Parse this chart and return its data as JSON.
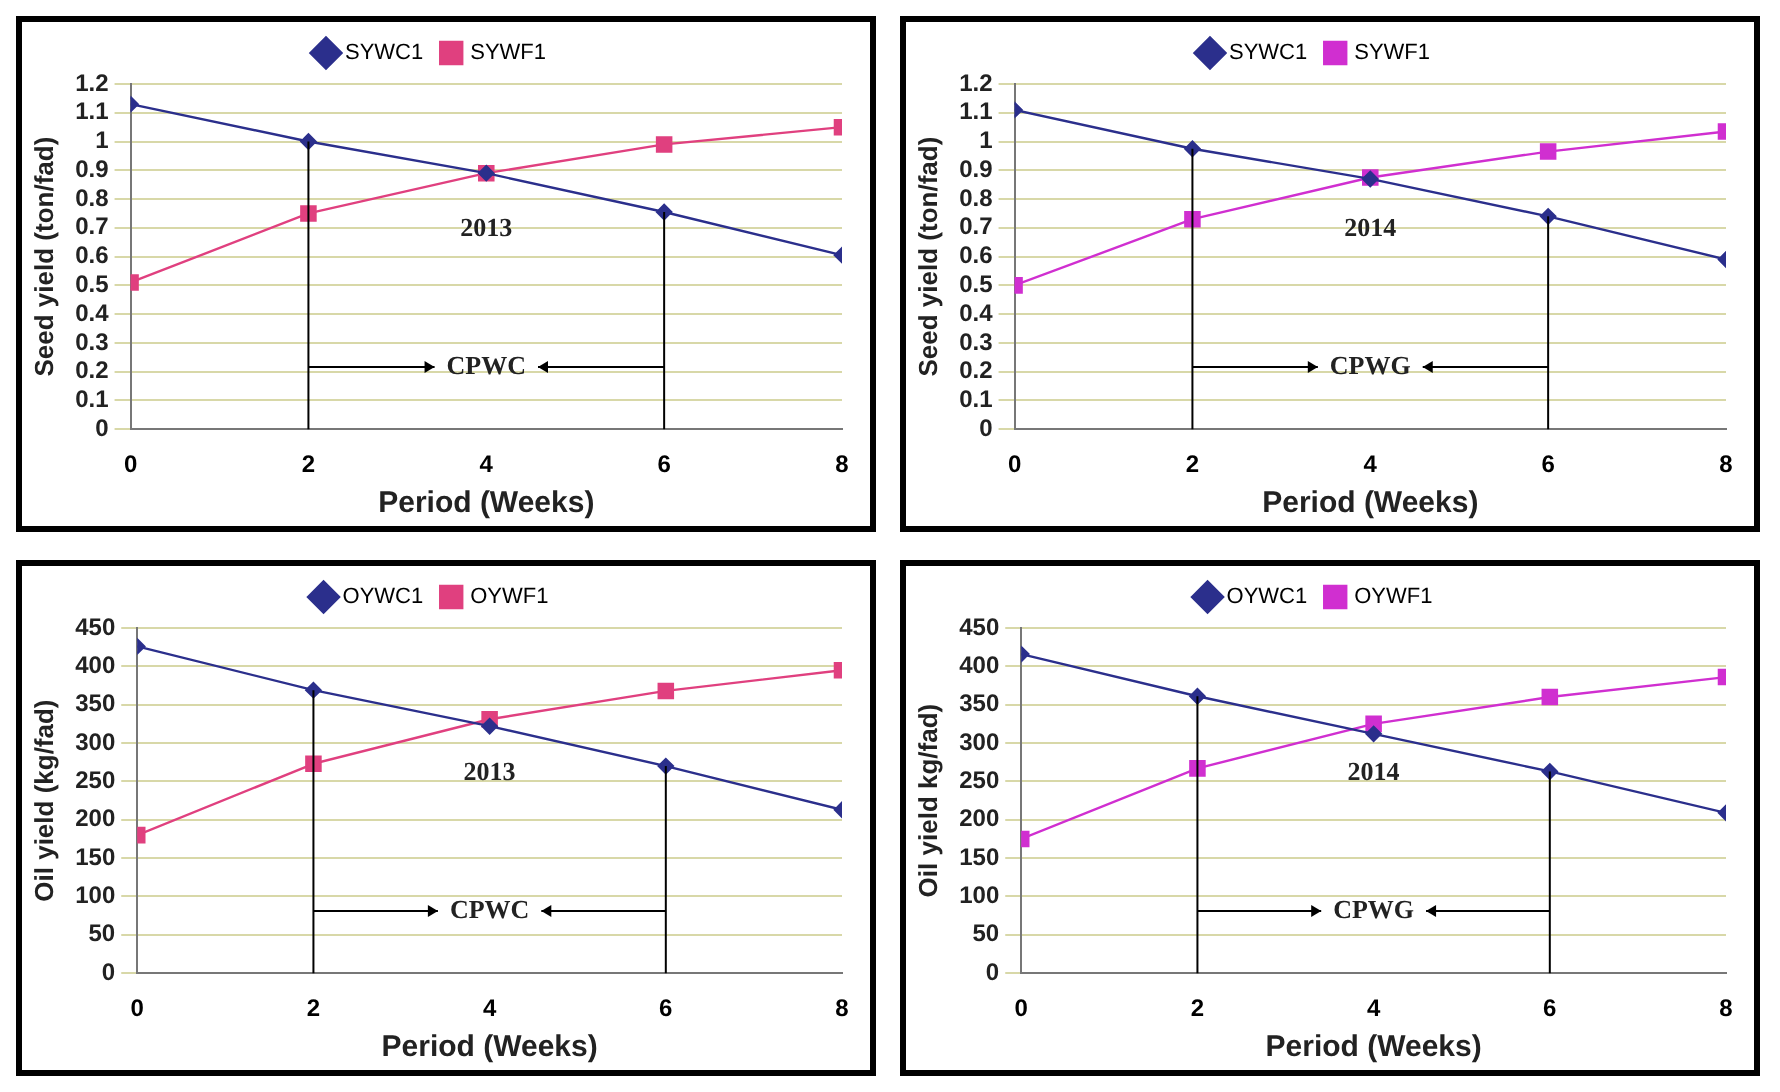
{
  "chart_data": [
    {
      "type": "line",
      "xlabel": "Period (Weeks)",
      "ylabel": "Seed yield (ton/fad)",
      "x": [
        0,
        2,
        4,
        6,
        8
      ],
      "xlim": [
        0,
        8
      ],
      "xticks": [
        0,
        2,
        4,
        6,
        8
      ],
      "ylim": [
        0,
        1.2
      ],
      "yticks": [
        0,
        0.1,
        0.2,
        0.3,
        0.4,
        0.5,
        0.6,
        0.7,
        0.8,
        0.9,
        1,
        1.1,
        1.2
      ],
      "grid": "y",
      "legend": "top",
      "series": [
        {
          "name": "SYWC1",
          "color": "#2b2f8c",
          "marker": "diamond",
          "values": [
            1.13,
            1.0,
            0.89,
            0.755,
            0.605
          ]
        },
        {
          "name": "SYWF1",
          "color": "#e0407f",
          "marker": "square",
          "values": [
            0.51,
            0.75,
            0.89,
            0.99,
            1.05
          ]
        }
      ],
      "ref_lines": [
        {
          "axis": "x",
          "value": 2,
          "color": "#000000"
        },
        {
          "axis": "x",
          "value": 6,
          "color": "#000000"
        }
      ],
      "annotations": [
        "2013",
        "CPWC"
      ]
    },
    {
      "type": "line",
      "xlabel": "Period (Weeks)",
      "ylabel": "Seed yield (ton/fad)",
      "x": [
        0,
        2,
        4,
        6,
        8
      ],
      "xlim": [
        0,
        8
      ],
      "xticks": [
        0,
        2,
        4,
        6,
        8
      ],
      "ylim": [
        0,
        1.2
      ],
      "yticks": [
        0,
        0.1,
        0.2,
        0.3,
        0.4,
        0.5,
        0.6,
        0.7,
        0.8,
        0.9,
        1,
        1.1,
        1.2
      ],
      "grid": "y",
      "legend": "top",
      "series": [
        {
          "name": "SYWC1",
          "color": "#2b2f8c",
          "marker": "diamond",
          "values": [
            1.11,
            0.975,
            0.87,
            0.74,
            0.59
          ]
        },
        {
          "name": "SYWF1",
          "color": "#d02fd0",
          "marker": "square",
          "values": [
            0.5,
            0.73,
            0.875,
            0.965,
            1.035
          ]
        }
      ],
      "ref_lines": [
        {
          "axis": "x",
          "value": 2,
          "color": "#000000"
        },
        {
          "axis": "x",
          "value": 6,
          "color": "#000000"
        }
      ],
      "annotations": [
        "2014",
        "CPWG"
      ]
    },
    {
      "type": "line",
      "xlabel": "Period (Weeks)",
      "ylabel": "Oil yield (kg/fad)",
      "x": [
        0,
        2,
        4,
        6,
        8
      ],
      "xlim": [
        0,
        8
      ],
      "xticks": [
        0,
        2,
        4,
        6,
        8
      ],
      "ylim": [
        0,
        450
      ],
      "yticks": [
        0,
        50,
        100,
        150,
        200,
        250,
        300,
        350,
        400,
        450
      ],
      "grid": "y",
      "legend": "top",
      "series": [
        {
          "name": "OYWC1",
          "color": "#2b2f8c",
          "marker": "diamond",
          "values": [
            426,
            369,
            322,
            270,
            213
          ]
        },
        {
          "name": "OYWF1",
          "color": "#e0407f",
          "marker": "square",
          "values": [
            180,
            273,
            331,
            368,
            395
          ]
        }
      ],
      "ref_lines": [
        {
          "axis": "x",
          "value": 2,
          "color": "#000000"
        },
        {
          "axis": "x",
          "value": 6,
          "color": "#000000"
        }
      ],
      "annotations": [
        "2013",
        "CPWC"
      ]
    },
    {
      "type": "line",
      "xlabel": "Period (Weeks)",
      "ylabel": "Oil yield kg/fad)",
      "x": [
        0,
        2,
        4,
        6,
        8
      ],
      "xlim": [
        0,
        8
      ],
      "xticks": [
        0,
        2,
        4,
        6,
        8
      ],
      "ylim": [
        0,
        450
      ],
      "yticks": [
        0,
        50,
        100,
        150,
        200,
        250,
        300,
        350,
        400,
        450
      ],
      "grid": "y",
      "legend": "top",
      "series": [
        {
          "name": "OYWC1",
          "color": "#2b2f8c",
          "marker": "diamond",
          "values": [
            416,
            361,
            312,
            263,
            209
          ]
        },
        {
          "name": "OYWF1",
          "color": "#d02fd0",
          "marker": "square",
          "values": [
            175,
            267,
            325,
            360,
            386
          ]
        }
      ],
      "ref_lines": [
        {
          "axis": "x",
          "value": 2,
          "color": "#000000"
        },
        {
          "axis": "x",
          "value": 6,
          "color": "#000000"
        }
      ],
      "annotations": [
        "2014",
        "CPWG"
      ]
    }
  ]
}
